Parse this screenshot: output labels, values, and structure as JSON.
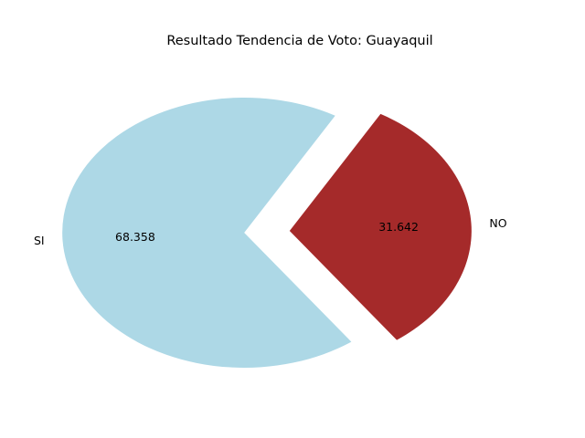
{
  "chart_data": {
    "type": "pie",
    "title": "Resultado Tendencia de Voto: Guayaquil",
    "categories": [
      "SI",
      "NO"
    ],
    "values": [
      68.358,
      31.642
    ],
    "value_labels": [
      "68.358",
      "31.642"
    ],
    "colors": [
      "#add8e6",
      "#a52a2a"
    ],
    "exploded": [
      "SI",
      "NO"
    ],
    "legend": "none",
    "grid": false
  }
}
